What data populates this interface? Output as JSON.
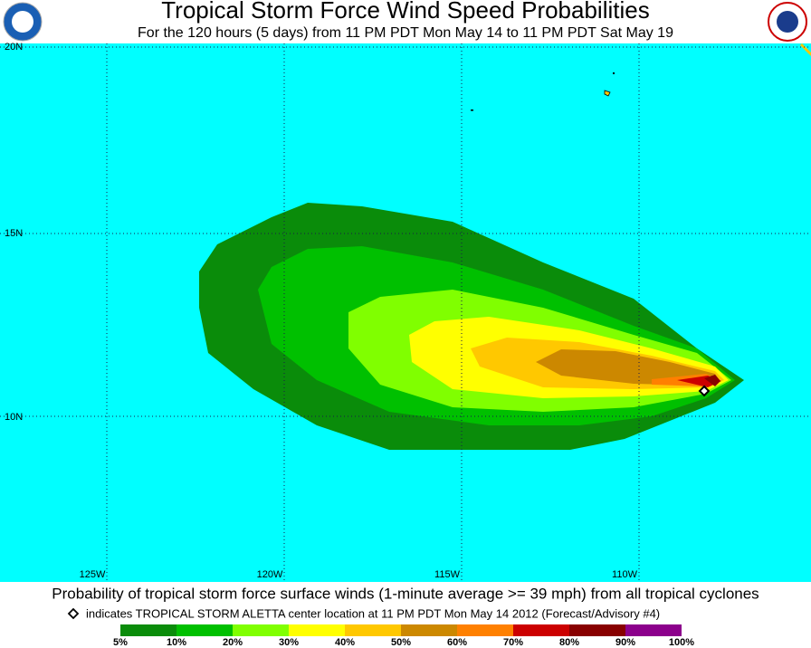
{
  "title": "Tropical Storm Force Wind Speed Probabilities",
  "subtitle": "For the 120 hours (5 days) from 11 PM PDT Mon May 14 to 11 PM PDT Sat May 19",
  "latitude_labels": [
    "20N",
    "15N",
    "10N"
  ],
  "longitude_labels": [
    "125W",
    "120W",
    "115W",
    "110W"
  ],
  "caption": "Probability of tropical storm force surface winds (1-minute average >= 39 mph) from all tropical cyclones",
  "note": "indicates TROPICAL STORM ALETTA center location at 11 PM PDT Mon May 14 2012 (Forecast/Advisory #4)",
  "legend": {
    "labels": [
      "5%",
      "10%",
      "20%",
      "30%",
      "40%",
      "50%",
      "60%",
      "70%",
      "80%",
      "90%",
      "100%"
    ],
    "colors": [
      "#0a8c0a",
      "#00c000",
      "#80ff00",
      "#ffff00",
      "#ffc800",
      "#cc8800",
      "#ff8000",
      "#cc0000",
      "#880000",
      "#8c008c"
    ]
  }
}
